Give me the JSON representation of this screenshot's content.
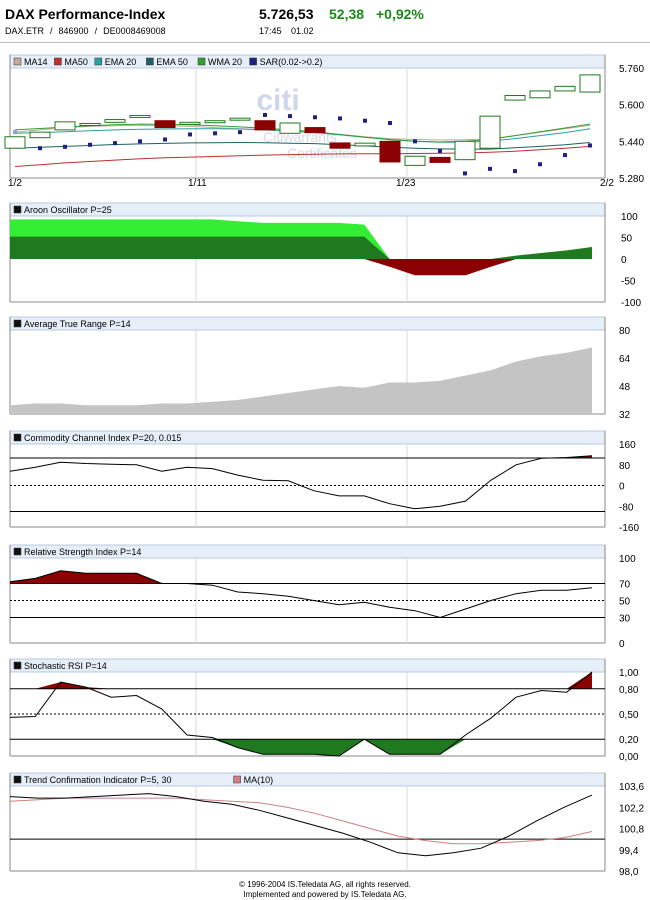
{
  "header": {
    "title": "DAX Performance-Index",
    "price": "5.726,53",
    "change": "52,38",
    "change_pct": "+0,92%",
    "symbol": "DAX.ETR",
    "wkn": "846900",
    "isin": "DE0008469008",
    "time": "17:45",
    "date": "01.02"
  },
  "watermark": {
    "brand": "citi",
    "line1": "Citiwarrants",
    "line2": "Certificates"
  },
  "colors": {
    "up": "#1f7a1f",
    "down": "#8b0000",
    "panel_header_bg": "#e6eef8",
    "ma14": "#c8a898",
    "ma50": "#c03030",
    "ema20": "#2aa0a0",
    "ema50": "#206060",
    "wma20": "#30a030",
    "sar": "#202080",
    "aroon_light": "#33ee33",
    "area_gray": "#c4c4c4",
    "ma10": "#d08080"
  },
  "chart_data": [
    {
      "id": "price",
      "type": "candlestick",
      "legend": [
        "MA14",
        "MA50",
        "EMA 20",
        "EMA 50",
        "WMA 20",
        "SAR(0.02->0.2)"
      ],
      "x_ticks": [
        "1/2",
        "1/11",
        "1/23",
        "2/2"
      ],
      "y_ticks": [
        "5.760",
        "5.600",
        "5.440",
        "5.280"
      ],
      "ylim": [
        5280,
        5760
      ],
      "candles": [
        {
          "o": 5410,
          "c": 5460
        },
        {
          "o": 5456,
          "c": 5480
        },
        {
          "o": 5490,
          "c": 5525
        },
        {
          "o": 5515,
          "c": 5518
        },
        {
          "o": 5523,
          "c": 5535
        },
        {
          "o": 5545,
          "c": 5553
        },
        {
          "o": 5530,
          "c": 5500
        },
        {
          "o": 5517,
          "c": 5523
        },
        {
          "o": 5525,
          "c": 5530
        },
        {
          "o": 5535,
          "c": 5541
        },
        {
          "o": 5530,
          "c": 5490
        },
        {
          "o": 5475,
          "c": 5520
        },
        {
          "o": 5500,
          "c": 5478
        },
        {
          "o": 5433,
          "c": 5410
        },
        {
          "o": 5420,
          "c": 5432
        },
        {
          "o": 5440,
          "c": 5350
        },
        {
          "o": 5335,
          "c": 5375
        },
        {
          "o": 5370,
          "c": 5348
        },
        {
          "o": 5360,
          "c": 5440
        },
        {
          "o": 5410,
          "c": 5550
        },
        {
          "o": 5620,
          "c": 5640
        },
        {
          "o": 5630,
          "c": 5660
        },
        {
          "o": 5660,
          "c": 5680
        },
        {
          "o": 5655,
          "c": 5730
        }
      ],
      "ma14": [
        5480,
        5490,
        5500,
        5505,
        5508,
        5510,
        5508,
        5505,
        5500,
        5495,
        5490,
        5485,
        5478,
        5470,
        5460,
        5452,
        5448,
        5446,
        5447,
        5450,
        5465,
        5480,
        5495,
        5510
      ],
      "ma50": [
        5330,
        5338,
        5346,
        5352,
        5358,
        5364,
        5368,
        5371,
        5374,
        5377,
        5380,
        5382,
        5384,
        5385,
        5386,
        5386,
        5387,
        5388,
        5389,
        5392,
        5397,
        5403,
        5410,
        5418
      ],
      "ema20": [
        5475,
        5478,
        5482,
        5486,
        5490,
        5493,
        5494,
        5495,
        5495,
        5494,
        5490,
        5485,
        5478,
        5468,
        5458,
        5448,
        5440,
        5436,
        5436,
        5440,
        5452,
        5465,
        5478,
        5495
      ],
      "ema50": [
        5410,
        5414,
        5418,
        5422,
        5426,
        5429,
        5431,
        5433,
        5434,
        5435,
        5434,
        5432,
        5430,
        5425,
        5420,
        5415,
        5410,
        5407,
        5406,
        5406,
        5412,
        5418,
        5425,
        5435
      ],
      "wma20": [
        5490,
        5496,
        5502,
        5508,
        5512,
        5515,
        5514,
        5512,
        5508,
        5503,
        5497,
        5490,
        5482,
        5470,
        5458,
        5447,
        5440,
        5437,
        5440,
        5448,
        5465,
        5482,
        5498,
        5515
      ],
      "sar": [
        5480,
        5410,
        5416,
        5425,
        5432,
        5440,
        5448,
        5470,
        5475,
        5480,
        5555,
        5550,
        5545,
        5540,
        5530,
        5520,
        5440,
        5398,
        5300,
        5320,
        5310,
        5340,
        5380,
        5422
      ]
    },
    {
      "id": "aroon",
      "type": "area",
      "title": "Aroon Oscillator P=25",
      "y_ticks": [
        "100",
        "50",
        "0",
        "-50",
        "-100"
      ],
      "ylim": [
        -100,
        100
      ],
      "aroon_up_light": [
        92,
        92,
        92,
        92,
        92,
        92,
        92,
        92,
        92,
        88,
        84,
        84,
        84,
        84,
        80,
        0,
        0,
        0,
        0,
        0,
        0,
        0,
        0,
        0
      ],
      "values": [
        52,
        52,
        52,
        52,
        52,
        52,
        52,
        52,
        52,
        52,
        52,
        52,
        52,
        52,
        52,
        -18,
        -38,
        -38,
        -38,
        -18,
        8,
        14,
        20,
        28
      ]
    },
    {
      "id": "atr",
      "type": "area",
      "title": "Average True Range P=14",
      "y_ticks": [
        "80",
        "64",
        "48",
        "32"
      ],
      "ylim": [
        32,
        80
      ],
      "values": [
        37,
        38,
        38,
        37,
        37,
        37,
        38,
        38,
        39,
        40,
        42,
        44,
        46,
        48,
        47,
        50,
        50,
        51,
        54,
        57,
        62,
        65,
        67,
        70
      ]
    },
    {
      "id": "cci",
      "type": "line",
      "title": "Commodity Channel Index P=20, 0.015",
      "y_ticks": [
        "160",
        "80",
        "0",
        "-80",
        "-160"
      ],
      "ylim": [
        -160,
        160
      ],
      "values": [
        55,
        70,
        90,
        85,
        82,
        80,
        55,
        70,
        65,
        40,
        20,
        18,
        -20,
        -40,
        -40,
        -70,
        -90,
        -80,
        -60,
        20,
        80,
        105,
        108,
        115
      ]
    },
    {
      "id": "rsi",
      "type": "line",
      "title": "Relative Strength Index P=14",
      "y_ticks": [
        "100",
        "70",
        "50",
        "30",
        "0"
      ],
      "ylim": [
        0,
        100
      ],
      "values": [
        72,
        76,
        85,
        82,
        82,
        82,
        70,
        70,
        68,
        60,
        58,
        55,
        50,
        45,
        48,
        42,
        38,
        30,
        40,
        50,
        58,
        62,
        62,
        65
      ]
    },
    {
      "id": "stochrsi",
      "type": "line",
      "title": "Stochastic RSI P=14",
      "y_ticks": [
        "1,00",
        "0,80",
        "0,50",
        "0,20",
        "0,00"
      ],
      "ylim": [
        0,
        1
      ],
      "values": [
        0.46,
        0.47,
        0.88,
        0.82,
        0.7,
        0.72,
        0.56,
        0.25,
        0.22,
        0.1,
        0.02,
        0.02,
        0.02,
        0.0,
        0.2,
        0.02,
        0.02,
        0.02,
        0.25,
        0.45,
        0.7,
        0.78,
        0.76,
        1.0
      ]
    },
    {
      "id": "tci",
      "type": "line",
      "title": "Trend Confirmation Indicator P=5, 30",
      "legend": [
        "MA(10)"
      ],
      "y_ticks": [
        "103,6",
        "102,2",
        "100,8",
        "99,4",
        "98,0"
      ],
      "ylim": [
        98,
        103.6
      ],
      "values": [
        102.9,
        102.8,
        102.8,
        102.9,
        103.0,
        103.1,
        102.9,
        102.6,
        102.4,
        102.0,
        101.5,
        101.0,
        100.5,
        99.9,
        99.2,
        99.0,
        99.2,
        99.5,
        100.3,
        101.3,
        102.2,
        103.0
      ],
      "ma10": [
        102.6,
        102.7,
        102.8,
        102.8,
        102.8,
        102.8,
        102.8,
        102.7,
        102.6,
        102.5,
        102.2,
        101.8,
        101.3,
        100.8,
        100.3,
        100.0,
        99.8,
        99.8,
        99.9,
        100.0,
        100.2,
        100.6
      ]
    }
  ],
  "footer": {
    "line1": "© 1996-2004 IS.Teledata AG, all rights reserved.",
    "line2": "Implemented and powered by IS.Teledata AG."
  }
}
